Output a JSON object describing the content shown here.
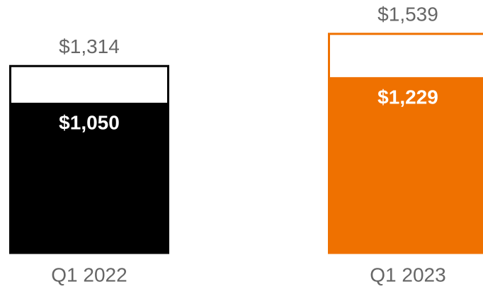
{
  "chart_data": {
    "type": "bar",
    "categories": [
      "Q1 2022",
      "Q1 2023"
    ],
    "colors": [
      "#000000",
      "#ef7100"
    ],
    "series": [
      {
        "values": [
          1314,
          1539
        ],
        "value_labels": [
          "$1,314",
          "$1,539"
        ],
        "style": "outline"
      },
      {
        "values": [
          1050,
          1229
        ],
        "value_labels": [
          "$1,050",
          "$1,229"
        ],
        "style": "filled"
      }
    ],
    "ylim": [
      0,
      1600
    ]
  }
}
